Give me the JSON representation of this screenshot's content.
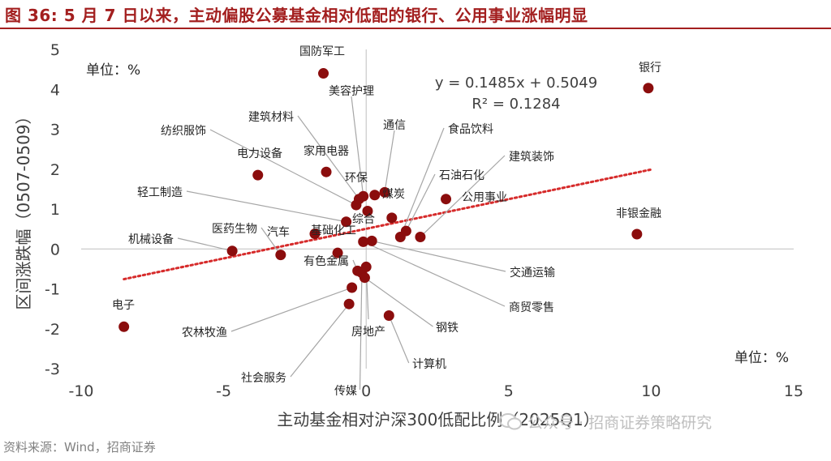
{
  "title": "图 36:  5 月 7 日以来，主动偏股公募基金相对低配的银行、公用事业涨幅明显",
  "source": "资料来源：Wind，招商证券",
  "watermark": "公众号 · 招商证券策略研究",
  "colors": {
    "title": "#a31f1f",
    "point": "#8b0d0d",
    "trendline": "#d62b2b",
    "leader": "#a6a6a6",
    "axis": "#bfbfbf"
  },
  "chart_data": {
    "type": "scatter",
    "xlabel": "主动基金相对沪深300低配比例（2025Q1）",
    "ylabel": "区间涨跌幅（0507-0509）",
    "xlim": [
      -10,
      15
    ],
    "ylim": [
      -3,
      5
    ],
    "xticks": [
      "-10",
      "-5",
      "0",
      "5",
      "10",
      "15"
    ],
    "yticks": [
      "5",
      "4",
      "3",
      "2",
      "1",
      "0",
      "-1",
      "-2",
      "-3"
    ],
    "unit_top_left": "单位：%",
    "unit_bottom_right": "单位：%",
    "equation": "y = 0.1485x + 0.5049",
    "r_squared": "R² = 0.1284",
    "trendline": {
      "slope": 0.1485,
      "intercept": 0.5049,
      "x_range": [
        -8.5,
        10
      ]
    },
    "grid": false,
    "points": [
      {
        "label": "银行",
        "x": 9.9,
        "y": 4.03
      },
      {
        "label": "非银金融",
        "x": 9.5,
        "y": 0.37
      },
      {
        "label": "国防军工",
        "x": -1.5,
        "y": 4.4
      },
      {
        "label": "电力设备",
        "x": -3.8,
        "y": 1.85
      },
      {
        "label": "家用电器",
        "x": -1.4,
        "y": 1.93
      },
      {
        "label": "电子",
        "x": -8.5,
        "y": -1.95
      },
      {
        "label": "机械设备",
        "x": -4.7,
        "y": -0.05
      },
      {
        "label": "医药生物",
        "x": -3.0,
        "y": -0.15
      },
      {
        "label": "汽车",
        "x": -1.8,
        "y": 0.38
      },
      {
        "label": "基础化工",
        "x": -1.0,
        "y": -0.1
      },
      {
        "label": "轻工制造",
        "x": -0.7,
        "y": 0.68
      },
      {
        "label": "纺织服饰",
        "x": -0.35,
        "y": 1.1
      },
      {
        "label": "建筑材料",
        "x": -0.25,
        "y": 1.25
      },
      {
        "label": "美容护理",
        "x": -0.1,
        "y": 1.32
      },
      {
        "label": "综合",
        "x": 0.05,
        "y": 0.95
      },
      {
        "label": "环保",
        "x": 0.3,
        "y": 1.35
      },
      {
        "label": "通信",
        "x": 0.65,
        "y": 1.42
      },
      {
        "label": "煤炭",
        "x": 0.9,
        "y": 0.78
      },
      {
        "label": "食品饮料",
        "x": 1.2,
        "y": 0.3
      },
      {
        "label": "石油石化",
        "x": 1.4,
        "y": 0.45
      },
      {
        "label": "建筑装饰",
        "x": 1.9,
        "y": 0.3
      },
      {
        "label": "公用事业",
        "x": 2.8,
        "y": 1.25
      },
      {
        "label": "交通运输",
        "x": 0.2,
        "y": 0.2
      },
      {
        "label": "商贸零售",
        "x": -0.1,
        "y": 0.18
      },
      {
        "label": "有色金属",
        "x": -0.3,
        "y": -0.55
      },
      {
        "label": "农林牧渔",
        "x": -0.5,
        "y": -0.97
      },
      {
        "label": "社会服务",
        "x": -0.6,
        "y": -1.38
      },
      {
        "label": "传媒",
        "x": -0.15,
        "y": -0.6
      },
      {
        "label": "房地产",
        "x": 0.0,
        "y": -0.45
      },
      {
        "label": "计算机",
        "x": 0.8,
        "y": -1.67
      },
      {
        "label": "钢铁",
        "x": -0.05,
        "y": -0.72
      }
    ]
  }
}
